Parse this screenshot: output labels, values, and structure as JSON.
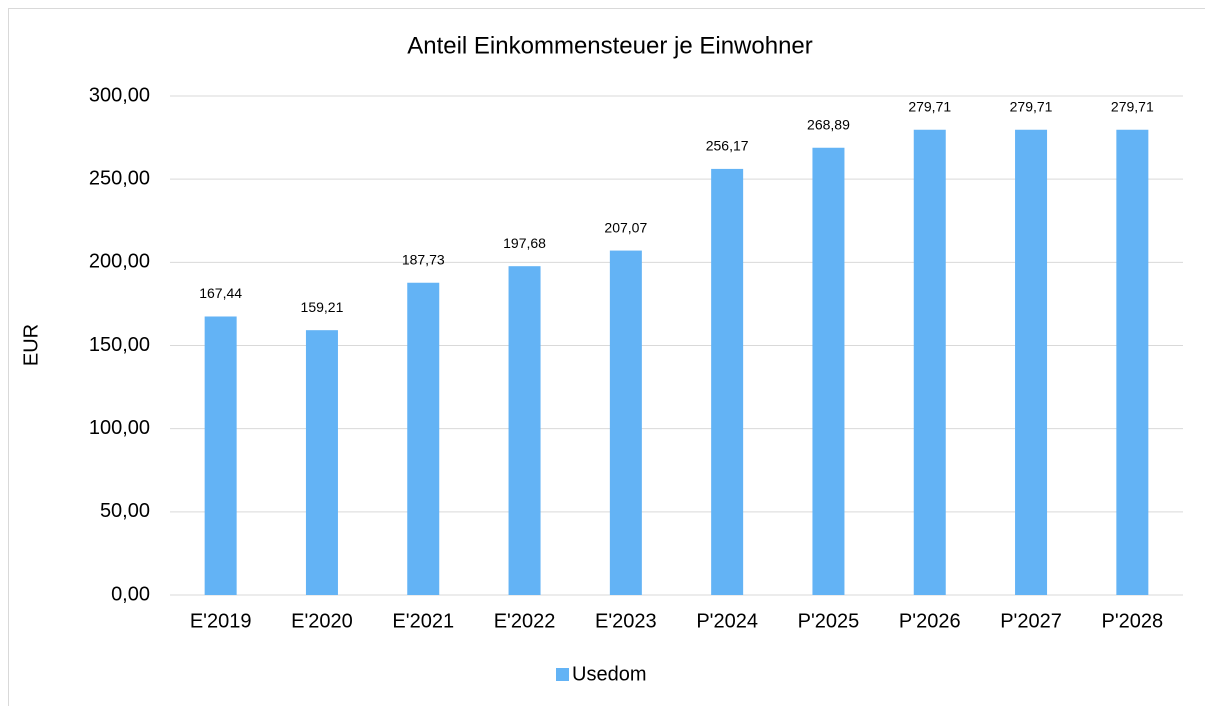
{
  "chart_data": {
    "type": "bar",
    "title": "Anteil Einkommensteuer je Einwohner",
    "y_label": "EUR",
    "categories": [
      "E'2019",
      "E'2020",
      "E'2021",
      "E'2022",
      "E'2023",
      "P'2024",
      "P'2025",
      "P'2026",
      "P'2027",
      "P'2028"
    ],
    "series": [
      {
        "name": "Usedom",
        "color": "#63b3f5",
        "values": [
          167.44,
          159.21,
          187.73,
          197.68,
          207.07,
          256.17,
          268.89,
          279.71,
          279.71,
          279.71
        ],
        "value_labels": [
          "167,44",
          "159,21",
          "187,73",
          "197,68",
          "207,07",
          "256,17",
          "268,89",
          "279,71",
          "279,71",
          "279,71"
        ]
      }
    ],
    "ylim": [
      0,
      300
    ],
    "yticks": [
      {
        "value": 0,
        "label": "0,00"
      },
      {
        "value": 50,
        "label": "50,00"
      },
      {
        "value": 100,
        "label": "100,00"
      },
      {
        "value": 150,
        "label": "150,00"
      },
      {
        "value": 200,
        "label": "200,00"
      },
      {
        "value": 250,
        "label": "250,00"
      },
      {
        "value": 300,
        "label": "300,00"
      }
    ],
    "grid": true,
    "legend": "bottom"
  }
}
